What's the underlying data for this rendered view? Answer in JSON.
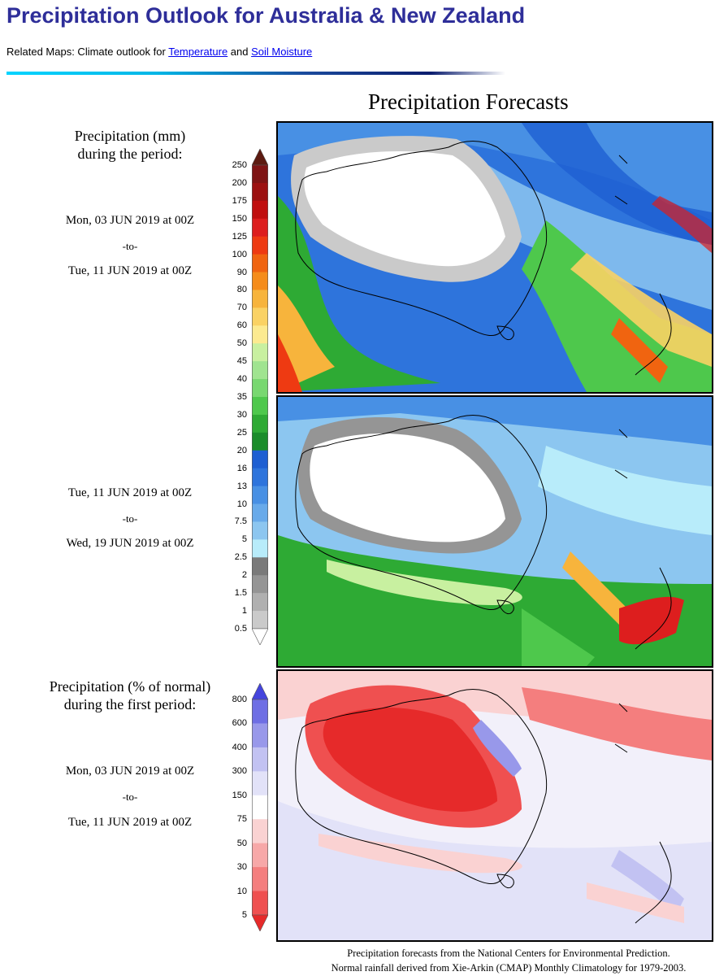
{
  "header": {
    "title": "Precipitation Outlook for Australia & New Zealand",
    "related_prefix": "Related Maps: Climate outlook for ",
    "link_temperature": "Temperature",
    "related_and": " and ",
    "link_soil_moisture": "Soil Moisture"
  },
  "figure": {
    "title": "Precipitation Forecasts",
    "mm_label_line1": "Precipitation (mm)",
    "mm_label_line2": "during the period:",
    "pct_label_line1": "Precipitation (% of normal)",
    "pct_label_line2": "during the first period:",
    "periods": [
      {
        "start": "Mon, 03 JUN 2019 at 00Z",
        "to": "-to-",
        "end": "Tue, 11 JUN 2019 at 00Z"
      },
      {
        "start": "Tue, 11 JUN 2019 at 00Z",
        "to": "-to-",
        "end": "Wed, 19 JUN 2019 at 00Z"
      },
      {
        "start": "Mon, 03 JUN 2019 at 00Z",
        "to": "-to-",
        "end": "Tue, 11 JUN 2019 at 00Z"
      }
    ],
    "mm_scale": {
      "labels": [
        "250",
        "200",
        "175",
        "150",
        "125",
        "100",
        "90",
        "80",
        "70",
        "60",
        "50",
        "45",
        "40",
        "35",
        "30",
        "25",
        "20",
        "16",
        "13",
        "10",
        "7.5",
        "5",
        "2.5",
        "2",
        "1.5",
        "1",
        "0.5"
      ],
      "colors": [
        "#5c1a10",
        "#7e1313",
        "#9c1010",
        "#c00f0f",
        "#dd1e1e",
        "#ee3a12",
        "#f06410",
        "#f58c1a",
        "#f7b43c",
        "#fad264",
        "#fcea90",
        "#c8f0a0",
        "#a0e490",
        "#78d870",
        "#4ec84c",
        "#2eaa34",
        "#1a8c2a",
        "#1e5fd2",
        "#2e74dc",
        "#4890e4",
        "#68aaea",
        "#8cc6f0",
        "#b8ecfa",
        "#7a7a7a",
        "#959595",
        "#b0b0b0",
        "#cacaca",
        "#ffffff"
      ]
    },
    "pct_scale": {
      "labels": [
        "800",
        "600",
        "400",
        "300",
        "150",
        "75",
        "50",
        "30",
        "10",
        "5"
      ],
      "colors": [
        "#4444dd",
        "#6e6ee4",
        "#9898ea",
        "#c2c2f2",
        "#e2e2f8",
        "#ffffff",
        "#fad2d2",
        "#f7a8a8",
        "#f47e7e",
        "#ef5050",
        "#e62a2a"
      ]
    },
    "credits_line1": "Precipitation forecasts from the National Centers for Environmental Prediction.",
    "credits_line2": "Normal rainfall derived from Xie-Arkin (CMAP) Monthly Climatology for 1979-2003."
  }
}
